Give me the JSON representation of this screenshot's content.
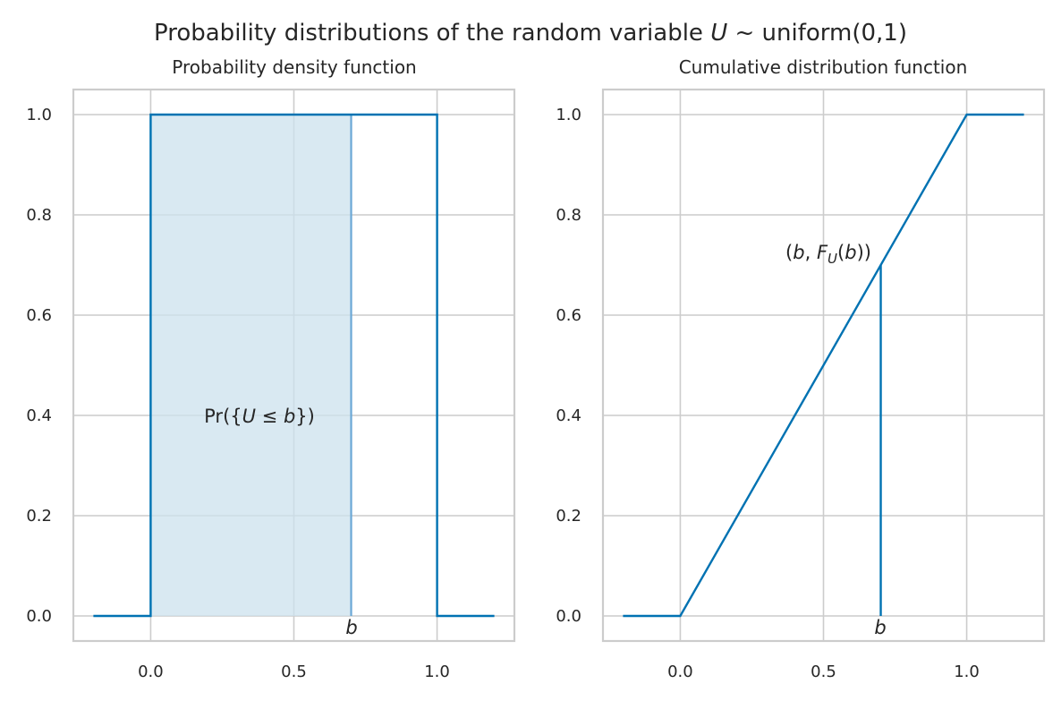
{
  "figure": {
    "title_prefix": "Probability distributions of the random variable ",
    "title_var": "U",
    "title_suffix": " ~ uniform(0,1)"
  },
  "colors": {
    "line": "#0072b2",
    "fill": "#cce1ee",
    "grid": "#cccccc",
    "frame": "#cccccc",
    "text": "#262626"
  },
  "chart_data": [
    {
      "type": "line",
      "title": "Probability density function",
      "xlabel": "",
      "ylabel": "",
      "xlim": [
        -0.27,
        1.27
      ],
      "ylim": [
        -0.05,
        1.05
      ],
      "xticks": [
        "0.0",
        "0.5",
        "1.0"
      ],
      "yticks": [
        "0.0",
        "0.2",
        "0.4",
        "0.6",
        "0.8",
        "1.0"
      ],
      "grid": true,
      "series": [
        {
          "x": [
            -0.2,
            0.0,
            0.0,
            1.0,
            1.0,
            1.2
          ],
          "y": [
            0,
            0,
            1,
            1,
            0,
            0
          ]
        }
      ],
      "shaded_region": {
        "x_from": 0.0,
        "x_to": 0.7,
        "y_to": 1.0,
        "edge_x": 0.7
      },
      "annotations": [
        {
          "label": "Pr({U ≤ b})",
          "x": 0.38,
          "y": 0.4
        },
        {
          "label": "b",
          "x": 0.7,
          "y": -0.02
        }
      ]
    },
    {
      "type": "line",
      "title": "Cumulative distribution function",
      "xlabel": "",
      "ylabel": "",
      "xlim": [
        -0.27,
        1.27
      ],
      "ylim": [
        -0.05,
        1.05
      ],
      "xticks": [
        "0.0",
        "0.5",
        "1.0"
      ],
      "yticks": [
        "0.0",
        "0.2",
        "0.4",
        "0.6",
        "0.8",
        "1.0"
      ],
      "grid": true,
      "series": [
        {
          "x": [
            -0.2,
            0.0,
            1.0,
            1.2
          ],
          "y": [
            0,
            0,
            1,
            1
          ]
        }
      ],
      "vertical_marker": {
        "x": 0.7,
        "y_from": 0.0,
        "y_to": 0.7
      },
      "annotations": [
        {
          "label": "(b, F_U(b))",
          "x": 0.52,
          "y": 0.72
        },
        {
          "label": "b",
          "x": 0.7,
          "y": -0.02
        }
      ]
    }
  ],
  "labels": {
    "pdf_ann_pre": "Pr({",
    "pdf_ann_U": "U",
    "pdf_ann_le": " ≤ ",
    "pdf_ann_b": "b",
    "pdf_ann_post": "})",
    "b_marker": "b",
    "cdf_ann_open": "(",
    "cdf_ann_b": "b",
    "cdf_ann_comma": ", ",
    "cdf_ann_F": "F",
    "cdf_ann_sub": "U",
    "cdf_ann_arg_open": "(",
    "cdf_ann_b2": "b",
    "cdf_ann_close": "))"
  }
}
